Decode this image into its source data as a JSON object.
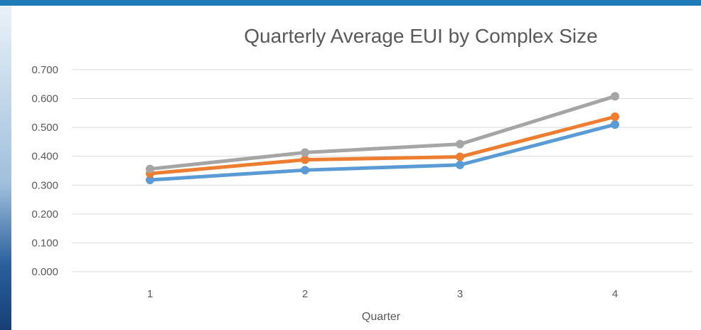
{
  "colors": {
    "frame_blue": "#1f7ab8",
    "gridline": "#d9d9d9",
    "text": "#595959"
  },
  "chart_data": {
    "type": "line",
    "title": "Quarterly Average EUI by Complex Size",
    "xlabel": "Quarter",
    "ylabel": "",
    "categories": [
      "1",
      "2",
      "3",
      "4"
    ],
    "y_ticks": [
      "0.000",
      "0.100",
      "0.200",
      "0.300",
      "0.400",
      "0.500",
      "0.600",
      "0.700"
    ],
    "ylim": [
      0,
      0.7
    ],
    "grid": true,
    "legend": "none",
    "series": [
      {
        "color": "#5b9bd5",
        "values": [
          0.318,
          0.352,
          0.37,
          0.51
        ]
      },
      {
        "color": "#ed7d31",
        "values": [
          0.34,
          0.388,
          0.398,
          0.537
        ]
      },
      {
        "color": "#a5a5a5",
        "values": [
          0.356,
          0.413,
          0.442,
          0.608
        ]
      }
    ]
  }
}
